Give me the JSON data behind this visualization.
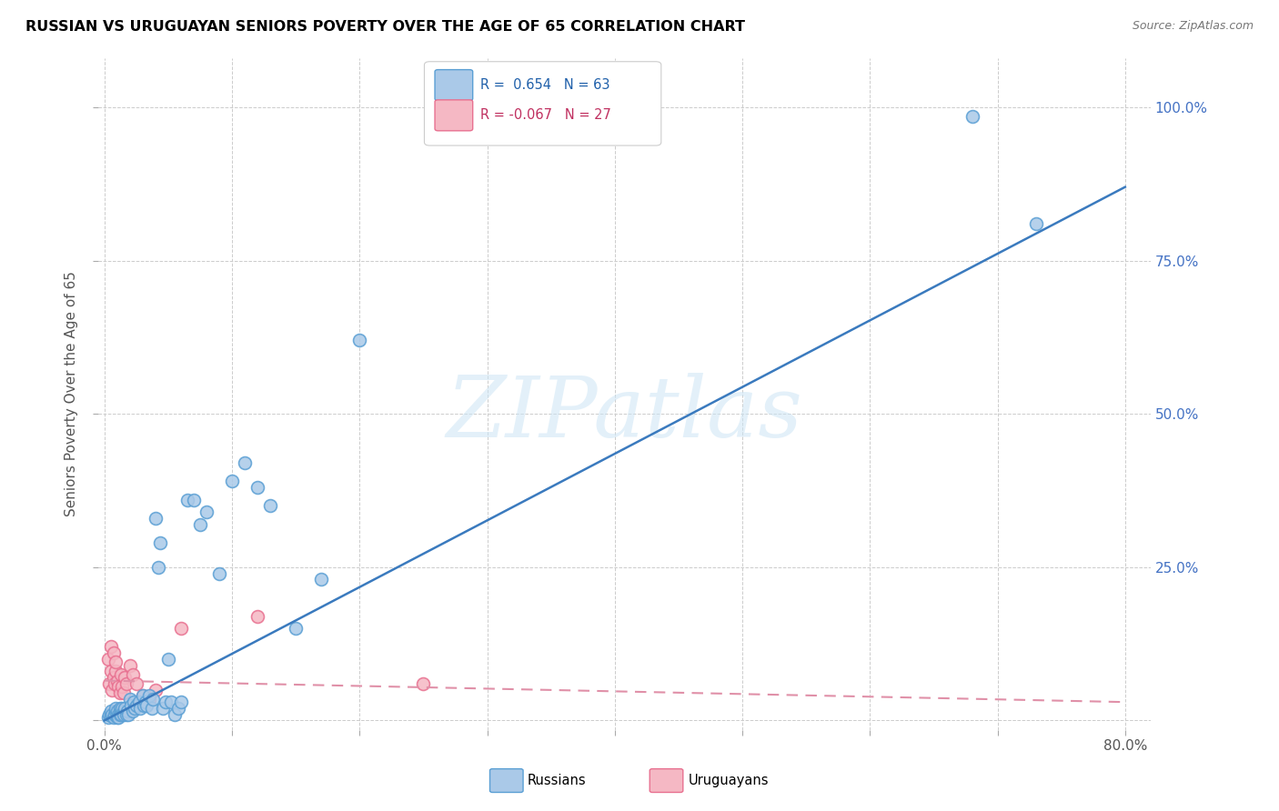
{
  "title": "RUSSIAN VS URUGUAYAN SENIORS POVERTY OVER THE AGE OF 65 CORRELATION CHART",
  "source": "Source: ZipAtlas.com",
  "ylabel": "Seniors Poverty Over the Age of 65",
  "xlim": [
    -0.005,
    0.82
  ],
  "ylim": [
    -0.015,
    1.08
  ],
  "xtick_vals": [
    0.0,
    0.1,
    0.2,
    0.3,
    0.4,
    0.5,
    0.6,
    0.7,
    0.8
  ],
  "xticklabels": [
    "0.0%",
    "",
    "",
    "",
    "",
    "",
    "",
    "",
    "80.0%"
  ],
  "ytick_vals": [
    0.0,
    0.25,
    0.5,
    0.75,
    1.0
  ],
  "yticklabels_right": [
    "",
    "25.0%",
    "50.0%",
    "75.0%",
    "100.0%"
  ],
  "russian_color": "#aac9e8",
  "russian_edge": "#5a9fd4",
  "uruguayan_color": "#f5b8c4",
  "uruguayan_edge": "#e87090",
  "legend_R1": "R =  0.654",
  "legend_N1": "N = 63",
  "legend_R2": "R = -0.067",
  "legend_N2": "N = 27",
  "blue_line_color": "#3a7abe",
  "pink_line_color": "#e090a8",
  "watermark": "ZIPatlas",
  "blue_line_x0": 0.0,
  "blue_line_y0": 0.0,
  "blue_line_x1": 0.8,
  "blue_line_y1": 0.87,
  "pink_line_x0": 0.0,
  "pink_line_y0": 0.065,
  "pink_line_x1": 0.8,
  "pink_line_y1": 0.03,
  "russians_x": [
    0.003,
    0.004,
    0.005,
    0.005,
    0.006,
    0.007,
    0.008,
    0.009,
    0.009,
    0.01,
    0.01,
    0.011,
    0.011,
    0.012,
    0.012,
    0.013,
    0.013,
    0.014,
    0.015,
    0.015,
    0.016,
    0.017,
    0.018,
    0.019,
    0.02,
    0.021,
    0.022,
    0.023,
    0.024,
    0.025,
    0.027,
    0.028,
    0.03,
    0.031,
    0.032,
    0.033,
    0.035,
    0.037,
    0.038,
    0.04,
    0.042,
    0.044,
    0.046,
    0.048,
    0.05,
    0.052,
    0.055,
    0.058,
    0.06,
    0.065,
    0.07,
    0.075,
    0.08,
    0.09,
    0.1,
    0.11,
    0.12,
    0.13,
    0.15,
    0.17,
    0.2,
    0.68,
    0.73
  ],
  "russians_y": [
    0.005,
    0.01,
    0.008,
    0.015,
    0.01,
    0.005,
    0.01,
    0.015,
    0.02,
    0.005,
    0.015,
    0.01,
    0.005,
    0.01,
    0.02,
    0.015,
    0.01,
    0.02,
    0.015,
    0.01,
    0.02,
    0.01,
    0.015,
    0.01,
    0.035,
    0.025,
    0.015,
    0.03,
    0.02,
    0.025,
    0.03,
    0.02,
    0.04,
    0.025,
    0.03,
    0.025,
    0.04,
    0.02,
    0.035,
    0.33,
    0.25,
    0.29,
    0.02,
    0.03,
    0.1,
    0.03,
    0.01,
    0.02,
    0.03,
    0.36,
    0.36,
    0.32,
    0.34,
    0.24,
    0.39,
    0.42,
    0.38,
    0.35,
    0.15,
    0.23,
    0.62,
    0.985,
    0.81
  ],
  "uruguayans_x": [
    0.003,
    0.004,
    0.005,
    0.005,
    0.006,
    0.007,
    0.007,
    0.008,
    0.009,
    0.009,
    0.01,
    0.011,
    0.012,
    0.013,
    0.014,
    0.015,
    0.016,
    0.017,
    0.02,
    0.022,
    0.025,
    0.03,
    0.035,
    0.04,
    0.06,
    0.12,
    0.25
  ],
  "uruguayans_y": [
    0.1,
    0.06,
    0.08,
    0.12,
    0.05,
    0.07,
    0.11,
    0.06,
    0.08,
    0.095,
    0.065,
    0.055,
    0.045,
    0.075,
    0.055,
    0.045,
    0.07,
    0.06,
    0.09,
    0.075,
    0.06,
    0.04,
    0.035,
    0.05,
    0.15,
    0.17,
    0.06
  ]
}
